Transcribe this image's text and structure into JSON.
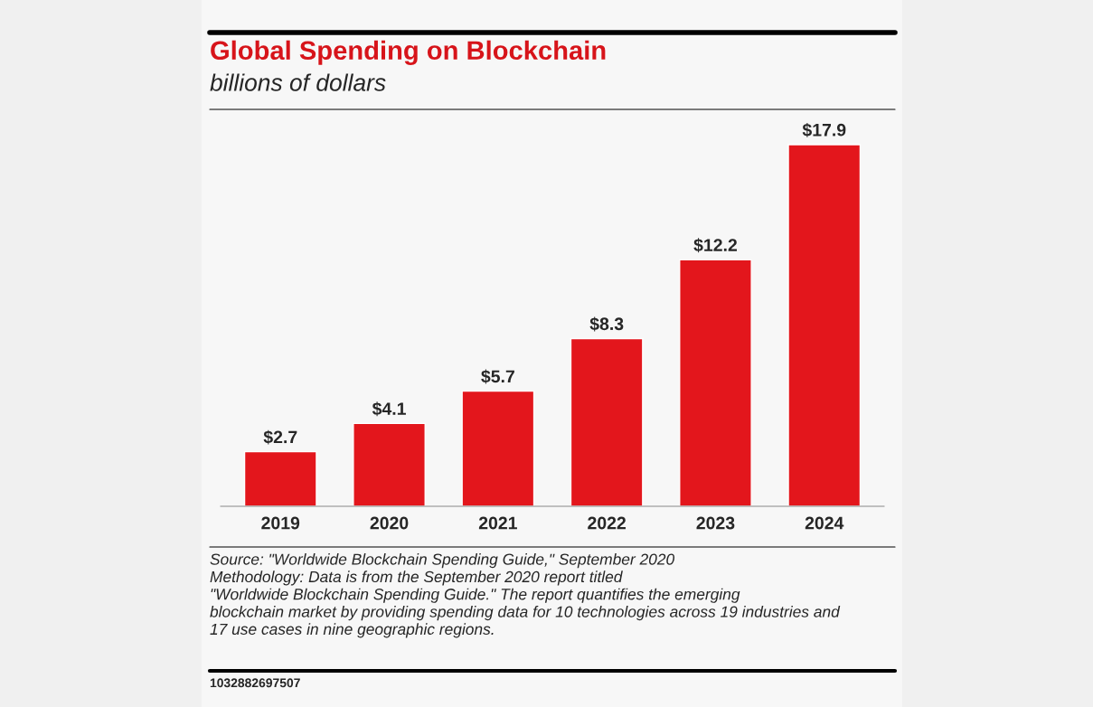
{
  "chart_data": {
    "type": "bar",
    "title": "Global Spending on Blockchain",
    "subtitle": "billions of dollars",
    "categories": [
      "2019",
      "2020",
      "2021",
      "2022",
      "2023",
      "2024"
    ],
    "values": [
      2.7,
      4.1,
      5.7,
      8.3,
      12.2,
      17.9
    ],
    "value_labels": [
      "$2.7",
      "$4.1",
      "$5.7",
      "$8.3",
      "$12.2",
      "$17.9"
    ],
    "color": "#e3161c",
    "grid": false,
    "annotations": [
      "Source: \"Worldwide Blockchain Spending Guide,\" September 2020\nMethodology: Data is from the September 2020 report titled\n\"Worldwide Blockchain Spending Guide.\" The report quantifies the emerging\nblockchain market by providing spending data for 10 technologies across 19 industries and\n17 use cases in nine geographic regions.",
      "1032882697507"
    ]
  }
}
